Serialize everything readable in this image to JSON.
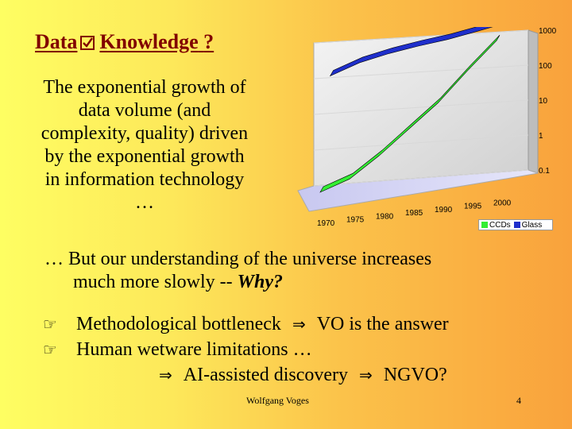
{
  "title": {
    "word1": "Data",
    "word2": "Knowledge",
    "suffix": "?"
  },
  "intro": {
    "lines": [
      "The exponential growth  of",
      "data volume (and",
      "complexity, quality) driven",
      "by the exponential growth",
      "in information technology",
      "…"
    ]
  },
  "body": {
    "line1": "… But our understanding of the universe increases",
    "line2_prefix": "much more slowly -- ",
    "line2_emph": "Why?"
  },
  "bullets": {
    "b1_text": "Methodological bottleneck",
    "b1_result": "VO is the answer",
    "b2_text": "Human wetware limitations …",
    "b3_text": "AI-assisted discovery",
    "b3_result": "NGVO?"
  },
  "footer": {
    "author": "Wolfgang Voges",
    "page": "4"
  },
  "chart_data": {
    "type": "line",
    "scale": "log",
    "categories": [
      "1970",
      "1975",
      "1980",
      "1985",
      "1990",
      "1995",
      "2000"
    ],
    "y_ticks": [
      "0.1",
      "1",
      "10",
      "100",
      "1000"
    ],
    "ylim": [
      0.1,
      1000
    ],
    "series": [
      {
        "name": "CCDs",
        "color": "#33ee33",
        "values": [
          0.1,
          0.2,
          0.8,
          4,
          20,
          150,
          1000
        ]
      },
      {
        "name": "Glass",
        "color": "#1f2fcc",
        "values": [
          100,
          200,
          300,
          400,
          500,
          700,
          1000
        ]
      }
    ],
    "legend_position": "bottom-right"
  }
}
